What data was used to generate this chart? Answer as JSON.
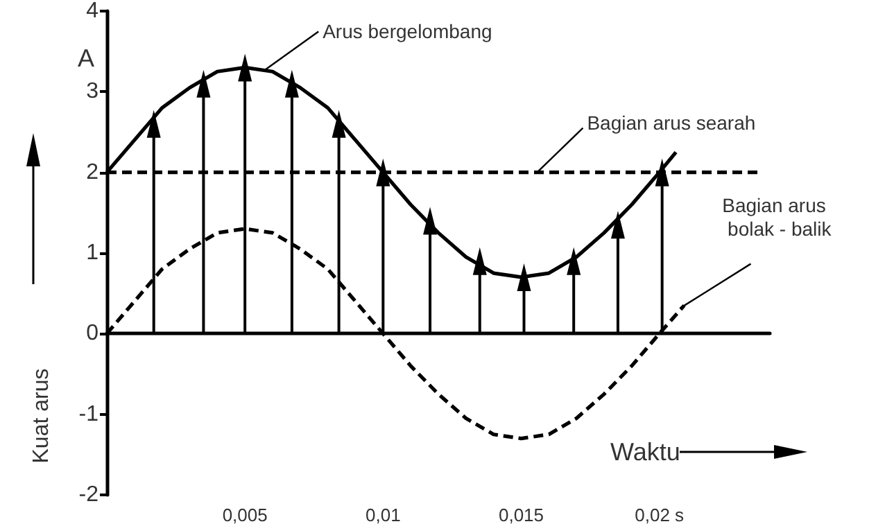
{
  "chart_data": {
    "type": "line",
    "ylabel": "Kuat arus",
    "xlabel": "Waktu",
    "annotations": [
      "A"
    ],
    "xlim": [
      0,
      0.024
    ],
    "xticks": [
      {
        "value": 0.005,
        "label": "0,005"
      },
      {
        "value": 0.01,
        "label": "0,01"
      },
      {
        "value": 0.015,
        "label": "0,015"
      },
      {
        "value": 0.02,
        "label": "0,02 s"
      }
    ],
    "ylim": [
      -2,
      4
    ],
    "yticks": [
      -2,
      -1,
      0,
      1,
      2,
      3,
      4
    ],
    "grid": false,
    "legend": false,
    "marker": "none",
    "series": [
      {
        "name": "Arus bergelombang",
        "color": "#000000",
        "line_style": "solid",
        "x": [
          0,
          0.001,
          0.002,
          0.003,
          0.004,
          0.005,
          0.006,
          0.007,
          0.008,
          0.009,
          0.01,
          0.011,
          0.012,
          0.013,
          0.014,
          0.015,
          0.016,
          0.017,
          0.018,
          0.019,
          0.02,
          0.0206
        ],
        "values": [
          2,
          2.4,
          2.8,
          3.05,
          3.25,
          3.3,
          3.25,
          3.05,
          2.8,
          2.4,
          2,
          1.6,
          1.25,
          0.95,
          0.75,
          0.7,
          0.75,
          0.95,
          1.25,
          1.6,
          2,
          2.25
        ]
      },
      {
        "name": "Bagian arus searah",
        "color": "#000000",
        "line_style": "dashed",
        "x": [
          0,
          0.0236
        ],
        "values": [
          2,
          2
        ]
      },
      {
        "name": "Bagian arus bolak - balik",
        "color": "#000000",
        "line_style": "dashed",
        "x": [
          0,
          0.001,
          0.002,
          0.003,
          0.004,
          0.005,
          0.006,
          0.007,
          0.008,
          0.009,
          0.01,
          0.011,
          0.012,
          0.013,
          0.014,
          0.015,
          0.016,
          0.017,
          0.018,
          0.019,
          0.02,
          0.0209
        ],
        "values": [
          0,
          0.4,
          0.8,
          1.05,
          1.25,
          1.3,
          1.25,
          1.05,
          0.8,
          0.4,
          0,
          -0.4,
          -0.75,
          -1.05,
          -1.25,
          -1.3,
          -1.25,
          -1.05,
          -0.75,
          -0.4,
          0,
          0.35
        ]
      },
      {
        "type": "lollipop",
        "color": "#000000",
        "marker": "triangle",
        "x": [
          0.0017,
          0.0035,
          0.005,
          0.0067,
          0.0084,
          0.01,
          0.0117,
          0.0135,
          0.0151,
          0.0169,
          0.0185,
          0.0201
        ],
        "values": [
          2.6,
          3.1,
          3.3,
          3.1,
          2.6,
          2.0,
          1.4,
          0.9,
          0.7,
          0.9,
          1.35,
          2.0
        ]
      }
    ]
  }
}
